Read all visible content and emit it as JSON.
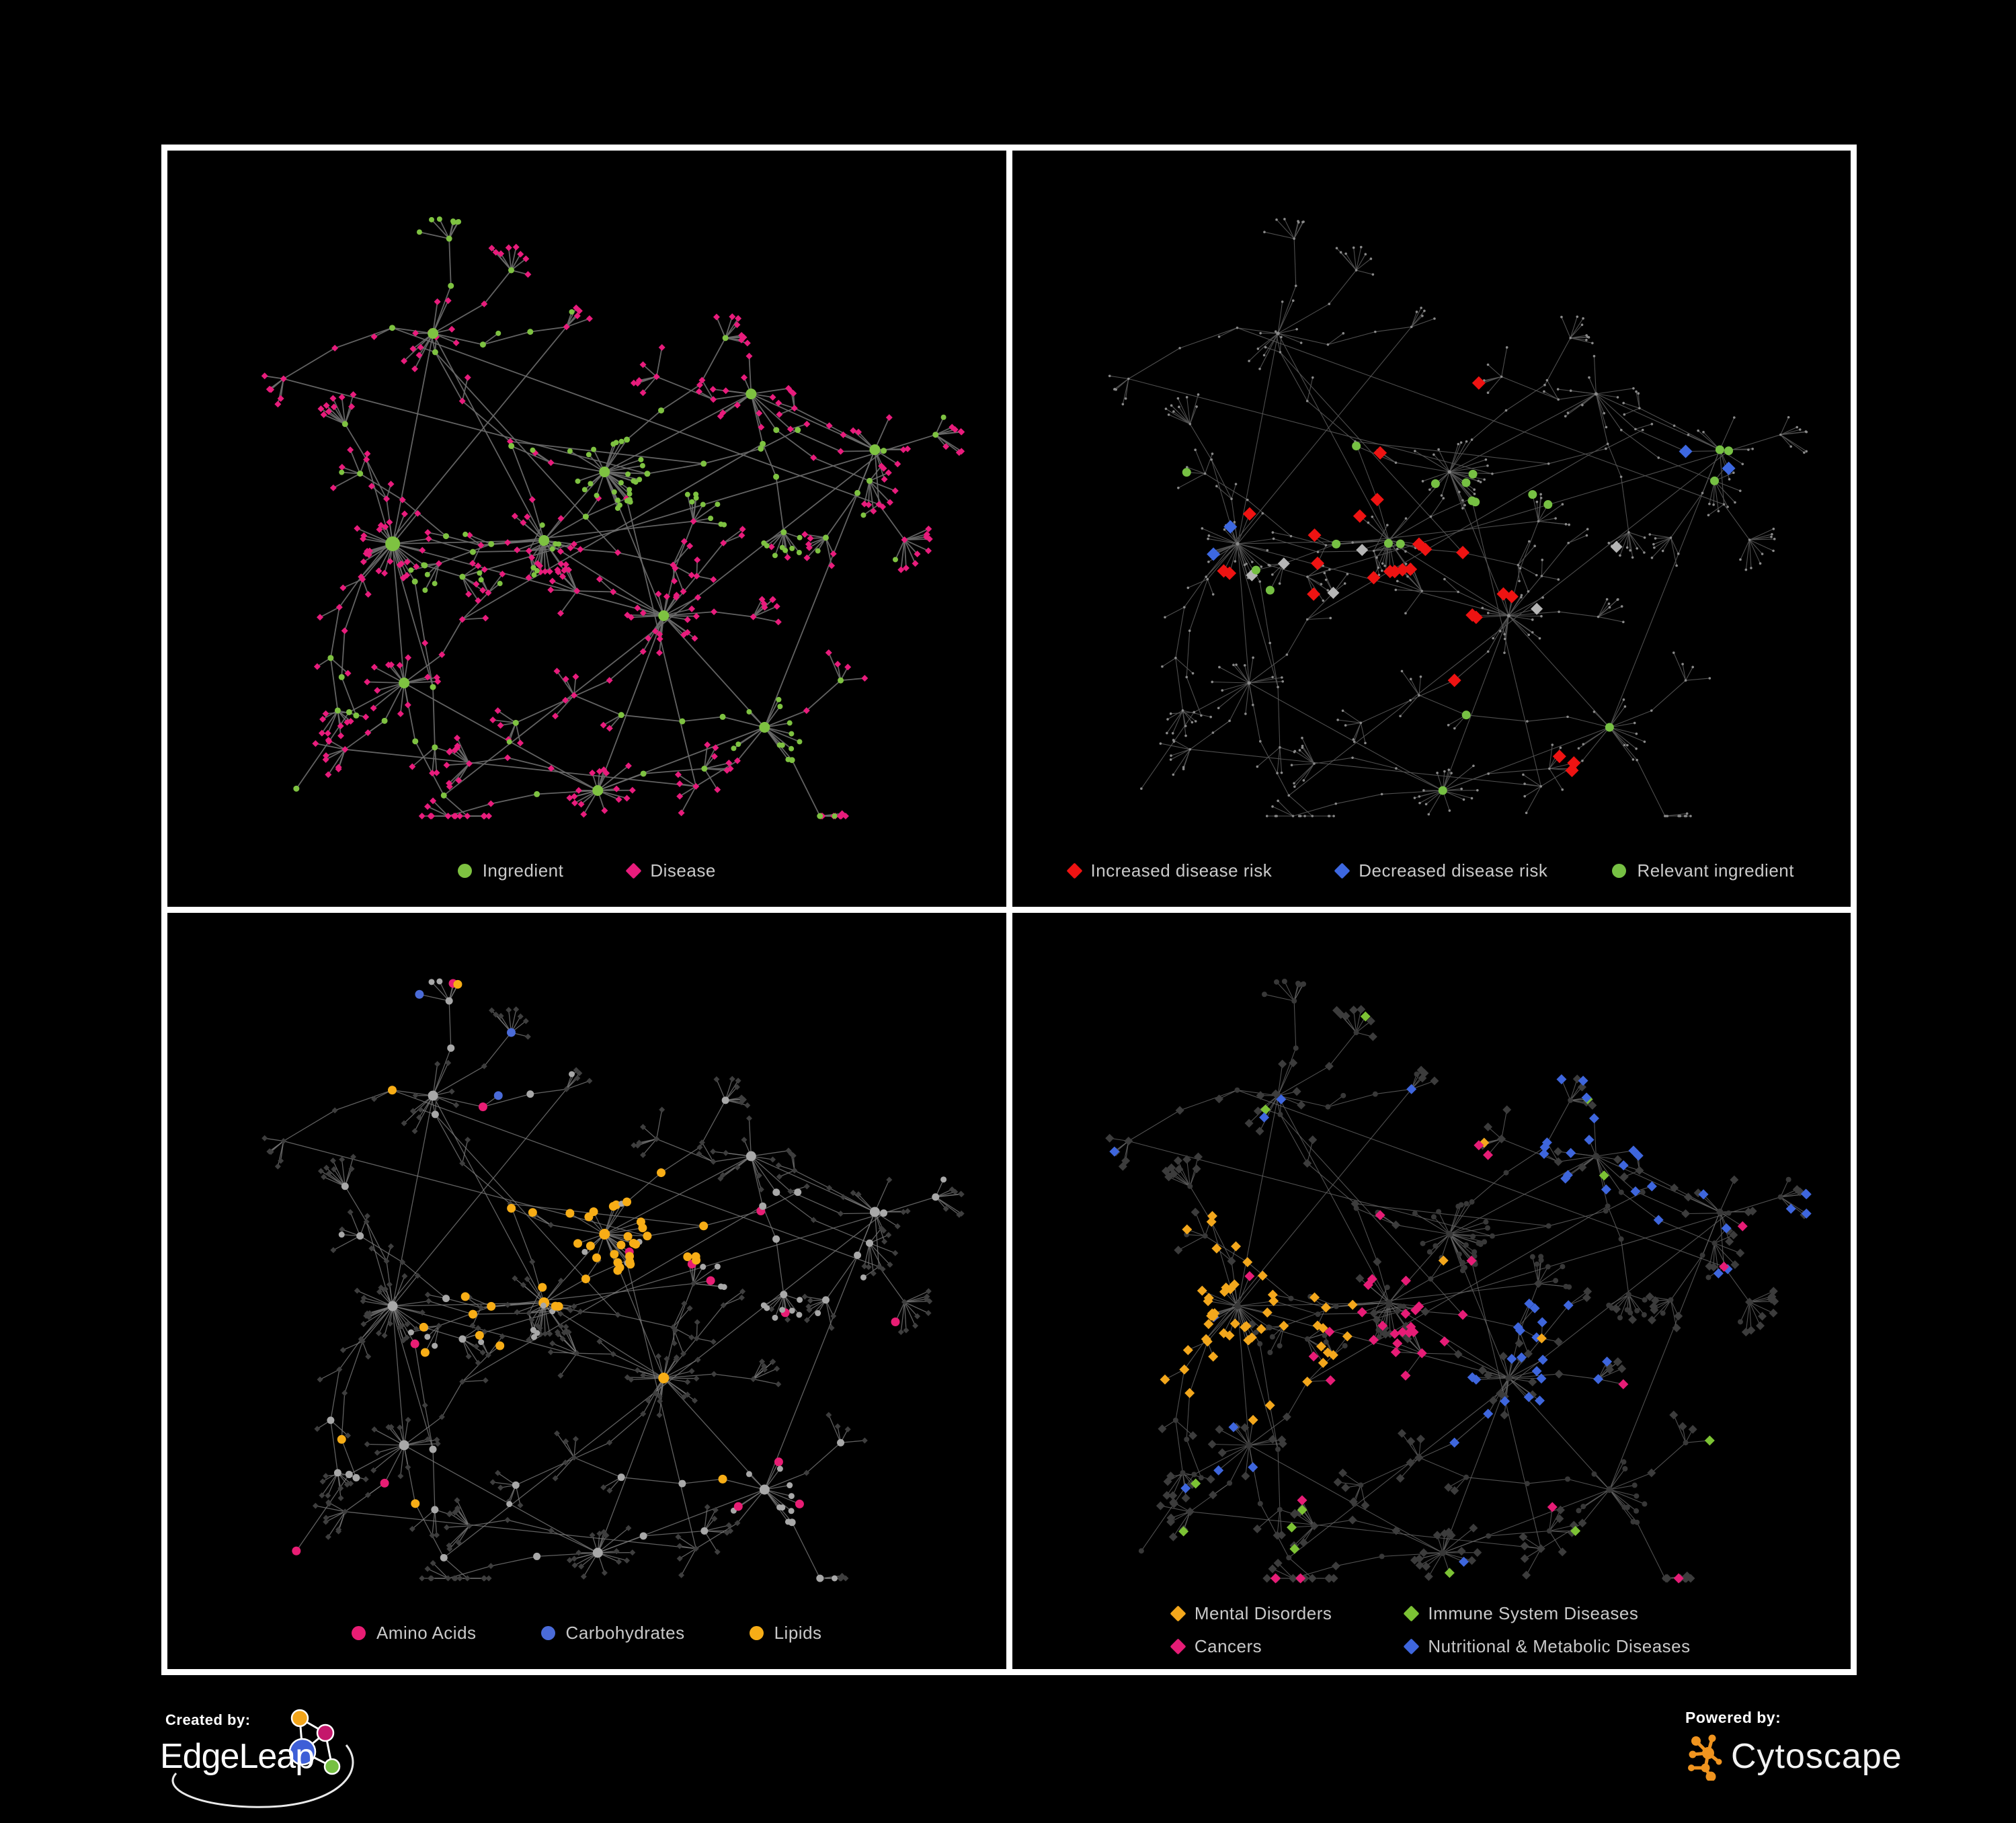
{
  "figure": {
    "background": "#000000",
    "panel_border_color": "#ffffff",
    "legend_text_color": "#c9c9c9"
  },
  "panels": [
    {
      "id": "ingredient-disease-network",
      "legend": {
        "layout": "row",
        "items": [
          {
            "label": "Ingredient",
            "marker": "circle",
            "color": "#7ec241"
          },
          {
            "label": "Disease",
            "marker": "diamond",
            "color": "#e81c7c"
          }
        ]
      }
    },
    {
      "id": "disease-risk-network",
      "legend": {
        "layout": "row",
        "items": [
          {
            "label": "Increased disease risk",
            "marker": "diamond",
            "color": "#ee1312"
          },
          {
            "label": "Decreased disease risk",
            "marker": "diamond",
            "color": "#3d68e1"
          },
          {
            "label": "Relevant ingredient",
            "marker": "circle",
            "color": "#76c043"
          }
        ]
      }
    },
    {
      "id": "nutrient-class-network",
      "legend": {
        "layout": "row",
        "items": [
          {
            "label": "Amino Acids",
            "marker": "circle",
            "color": "#e81d74"
          },
          {
            "label": "Carbohydrates",
            "marker": "circle",
            "color": "#4a6bd8"
          },
          {
            "label": "Lipids",
            "marker": "circle",
            "color": "#f7ad16"
          }
        ]
      }
    },
    {
      "id": "disease-category-network",
      "legend": {
        "layout": "grid2",
        "items": [
          {
            "label": "Mental Disorders",
            "marker": "diamond",
            "color": "#f3a71c"
          },
          {
            "label": "Immune System Diseases",
            "marker": "diamond",
            "color": "#7cc234"
          },
          {
            "label": "Cancers",
            "marker": "diamond",
            "color": "#e61c76"
          },
          {
            "label": "Nutritional & Metabolic Diseases",
            "marker": "diamond",
            "color": "#3e66dd"
          }
        ]
      }
    }
  ],
  "network_styles": {
    "panel1": {
      "edge": "#6d6d6d",
      "edge_w": 1.8,
      "ingredient": "#7ec241",
      "disease": "#e81c7c"
    },
    "panel2": {
      "edge": "#565656",
      "edge_w": 1.1,
      "base": "#8a8a8a",
      "red": "#ee1312",
      "blue": "#3d68e1",
      "silver": "#b5b5b5",
      "green": "#76c043"
    },
    "panel3": {
      "edge": "#787878",
      "edge_w": 1.3,
      "ingredient": "#a8a8a8",
      "disease": "#3e3e3e",
      "amino": "#e81d74",
      "carb": "#4a6bd8",
      "lipid": "#f7ad16"
    },
    "panel4": {
      "edge": "#646464",
      "edge_w": 1.1,
      "ingredient": "#383838",
      "disease": "#3c3c3c",
      "mental": "#f3a71c",
      "immune": "#7cc234",
      "cancer": "#e61c76",
      "nutri": "#3e66dd"
    }
  },
  "footer": {
    "created_by_label": "Created by:",
    "created_by_name": "EdgeLeap",
    "powered_by_label": "Powered by:",
    "powered_by_name": "Cytoscape",
    "edgeleap_colors": {
      "orange": "#f2a51b",
      "magenta": "#c4176b",
      "blue": "#3e5fd7",
      "green": "#76c043"
    },
    "cytoscape_orange": "#f0941f"
  }
}
